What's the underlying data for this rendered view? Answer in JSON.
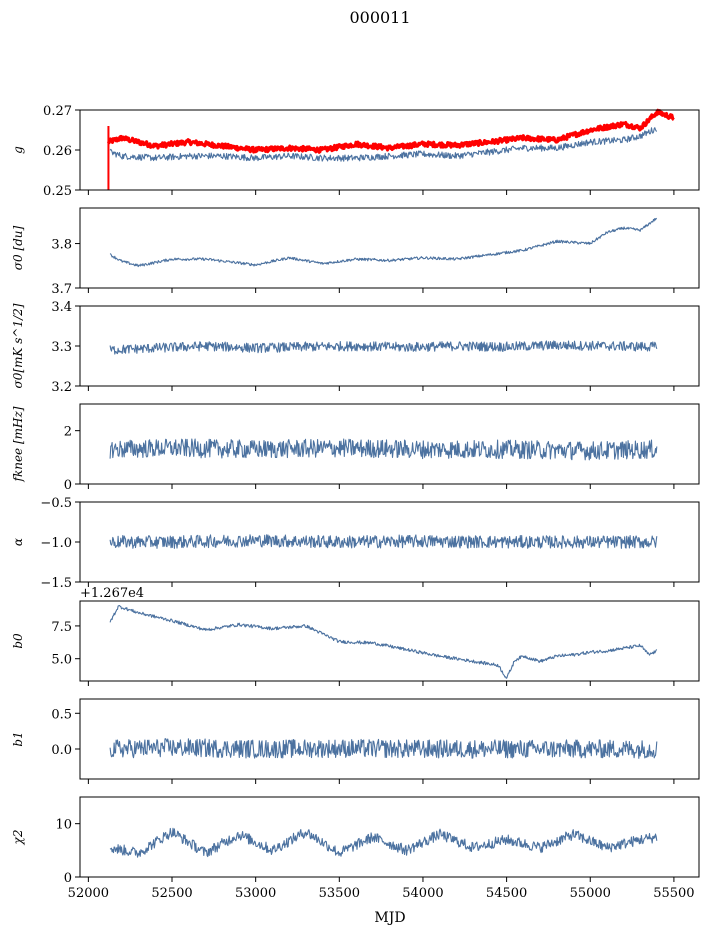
{
  "figure": {
    "title": "000011",
    "xlabel": "MJD"
  },
  "colors": {
    "series": "#4c72a0",
    "reference": "#ff0000",
    "axis": "#000000",
    "background": "#ffffff"
  },
  "chart_data": [
    {
      "type": "line",
      "ylabel": "g",
      "ylim": [
        0.25,
        0.27
      ],
      "xlim": [
        51950,
        55650
      ],
      "xticks": [
        "52000",
        "52500",
        "53000",
        "53500",
        "54000",
        "54500",
        "55000",
        "55500"
      ],
      "yticks": [
        "0.25",
        "0.26",
        "0.27"
      ],
      "grid": false,
      "series": [
        {
          "role": "reference",
          "color": "#ff0000",
          "x": [
            52120,
            52200,
            52400,
            52600,
            52800,
            53000,
            53200,
            53400,
            53600,
            53800,
            54000,
            54200,
            54400,
            54600,
            54800,
            55000,
            55200,
            55300,
            55400,
            55500
          ],
          "y": [
            0.262,
            0.263,
            0.261,
            0.262,
            0.261,
            0.26,
            0.2605,
            0.26,
            0.2615,
            0.2605,
            0.2615,
            0.2612,
            0.262,
            0.263,
            0.2625,
            0.265,
            0.2665,
            0.2655,
            0.2695,
            0.268
          ]
        },
        {
          "role": "series",
          "color": "#4c72a0",
          "x": [
            52130,
            52200,
            52400,
            52600,
            52800,
            53000,
            53200,
            53400,
            53600,
            53800,
            54000,
            54200,
            54400,
            54600,
            54800,
            55000,
            55200,
            55300,
            55400
          ],
          "y": [
            0.2595,
            0.2585,
            0.258,
            0.2585,
            0.2585,
            0.258,
            0.2585,
            0.258,
            0.258,
            0.2585,
            0.259,
            0.2585,
            0.2595,
            0.2605,
            0.2605,
            0.262,
            0.2625,
            0.2635,
            0.2655
          ]
        }
      ]
    },
    {
      "type": "line",
      "ylabel": "σ0 [du]",
      "ylim": [
        3.7,
        3.88
      ],
      "xlim": [
        51950,
        55650
      ],
      "yticks": [
        "3.7",
        "3.8"
      ],
      "grid": false,
      "series": [
        {
          "color": "#4c72a0",
          "x": [
            52130,
            52200,
            52300,
            52500,
            52700,
            53000,
            53200,
            53400,
            53600,
            53800,
            54000,
            54200,
            54400,
            54600,
            54800,
            55000,
            55100,
            55200,
            55300,
            55400
          ],
          "y": [
            3.775,
            3.76,
            3.75,
            3.765,
            3.765,
            3.752,
            3.768,
            3.755,
            3.765,
            3.762,
            3.768,
            3.765,
            3.775,
            3.785,
            3.805,
            3.8,
            3.825,
            3.835,
            3.83,
            3.858
          ]
        }
      ]
    },
    {
      "type": "line",
      "ylabel": "σ0[mK s^1/2]",
      "ylim": [
        3.2,
        3.4
      ],
      "xlim": [
        51950,
        55650
      ],
      "yticks": [
        "3.2",
        "3.3",
        "3.4"
      ],
      "grid": false,
      "series": [
        {
          "color": "#4c72a0",
          "x": [
            52130,
            52400,
            52700,
            53000,
            53300,
            53600,
            53900,
            54200,
            54500,
            54800,
            55100,
            55400
          ],
          "y": [
            3.29,
            3.295,
            3.3,
            3.295,
            3.298,
            3.3,
            3.297,
            3.3,
            3.298,
            3.302,
            3.3,
            3.298
          ]
        }
      ]
    },
    {
      "type": "line",
      "ylabel": "fknee [mHz]",
      "ylim": [
        0,
        3
      ],
      "xlim": [
        51950,
        55650
      ],
      "yticks": [
        "0",
        "2"
      ],
      "grid": false,
      "series": [
        {
          "color": "#4c72a0",
          "x": [
            52130,
            52500,
            53000,
            53500,
            54000,
            54500,
            55000,
            55400
          ],
          "y": [
            1.3,
            1.35,
            1.3,
            1.35,
            1.3,
            1.3,
            1.25,
            1.3
          ]
        }
      ]
    },
    {
      "type": "line",
      "ylabel": "α",
      "ylim": [
        -1.5,
        -0.5
      ],
      "xlim": [
        51950,
        55650
      ],
      "yticks": [
        "−1.5",
        "−1.0",
        "−0.5"
      ],
      "grid": false,
      "series": [
        {
          "color": "#4c72a0",
          "x": [
            52130,
            52500,
            53000,
            53500,
            54000,
            54500,
            55000,
            55400
          ],
          "y": [
            -1.0,
            -1.0,
            -0.98,
            -1.0,
            -0.99,
            -1.0,
            -1.0,
            -1.0
          ]
        }
      ]
    },
    {
      "type": "line",
      "ylabel": "b0",
      "offset_text": "+1.267e4",
      "ylim": [
        3.3,
        9.4
      ],
      "xlim": [
        51950,
        55650
      ],
      "yticks": [
        "5.0",
        "7.5"
      ],
      "grid": false,
      "series": [
        {
          "color": "#4c72a0",
          "x": [
            52130,
            52180,
            52300,
            52500,
            52700,
            52900,
            53100,
            53300,
            53500,
            53700,
            53900,
            54100,
            54300,
            54450,
            54500,
            54550,
            54600,
            54700,
            54800,
            54900,
            55000,
            55100,
            55200,
            55300,
            55350,
            55400
          ],
          "y": [
            7.8,
            9.0,
            8.5,
            7.9,
            7.2,
            7.6,
            7.3,
            7.5,
            6.3,
            6.2,
            5.7,
            5.2,
            4.8,
            4.5,
            3.5,
            4.9,
            5.2,
            4.8,
            5.2,
            5.3,
            5.5,
            5.6,
            5.8,
            6.0,
            5.3,
            5.6
          ]
        }
      ]
    },
    {
      "type": "line",
      "ylabel": "b1",
      "ylim": [
        -0.42,
        0.7
      ],
      "xlim": [
        51950,
        55650
      ],
      "yticks": [
        "0.0",
        "0.5"
      ],
      "grid": false,
      "series": [
        {
          "color": "#4c72a0",
          "x": [
            52130,
            52500,
            53000,
            53500,
            54000,
            54500,
            55000,
            55400
          ],
          "y": [
            0.0,
            0.02,
            0.0,
            0.01,
            0.0,
            0.0,
            0.0,
            0.0
          ]
        }
      ]
    },
    {
      "type": "line",
      "ylabel": "χ2",
      "ylim": [
        0,
        15
      ],
      "xlim": [
        51950,
        55650
      ],
      "yticks": [
        "0",
        "10"
      ],
      "grid": false,
      "series": [
        {
          "color": "#4c72a0",
          "x": [
            52130,
            52300,
            52500,
            52700,
            52900,
            53100,
            53300,
            53500,
            53700,
            53900,
            54100,
            54300,
            54500,
            54700,
            54900,
            55100,
            55300,
            55400
          ],
          "y": [
            5.5,
            4.5,
            8.5,
            4.5,
            8.0,
            5.0,
            8.5,
            4.5,
            7.5,
            5.0,
            8.0,
            5.5,
            7.0,
            5.5,
            8.0,
            5.5,
            7.0,
            7.5
          ]
        }
      ]
    }
  ]
}
